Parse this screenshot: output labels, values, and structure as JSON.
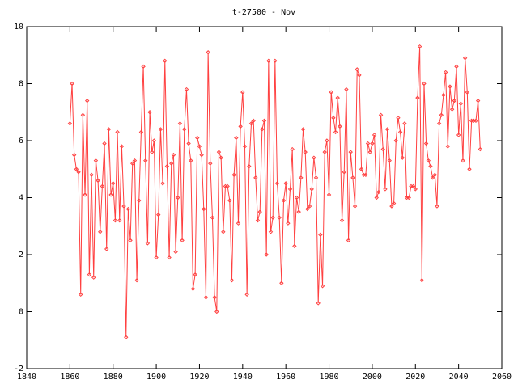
{
  "chart_data": {
    "type": "line",
    "title": "t-27500 - Nov",
    "x": [
      1860,
      1861,
      1862,
      1863,
      1864,
      1865,
      1866,
      1867,
      1868,
      1869,
      1870,
      1871,
      1872,
      1873,
      1874,
      1875,
      1876,
      1877,
      1878,
      1879,
      1880,
      1881,
      1882,
      1883,
      1884,
      1885,
      1886,
      1887,
      1888,
      1889,
      1890,
      1891,
      1892,
      1893,
      1894,
      1895,
      1896,
      1897,
      1898,
      1899,
      1900,
      1901,
      1902,
      1903,
      1904,
      1905,
      1906,
      1907,
      1908,
      1909,
      1910,
      1911,
      1912,
      1913,
      1914,
      1915,
      1916,
      1917,
      1918,
      1919,
      1920,
      1921,
      1922,
      1923,
      1924,
      1925,
      1926,
      1927,
      1928,
      1929,
      1930,
      1931,
      1932,
      1933,
      1934,
      1935,
      1936,
      1937,
      1938,
      1939,
      1940,
      1941,
      1942,
      1943,
      1944,
      1945,
      1946,
      1947,
      1948,
      1949,
      1950,
      1951,
      1952,
      1953,
      1954,
      1955,
      1956,
      1957,
      1958,
      1959,
      1960,
      1961,
      1962,
      1963,
      1964,
      1965,
      1966,
      1967,
      1968,
      1969,
      1970,
      1971,
      1972,
      1973,
      1974,
      1975,
      1976,
      1977,
      1978,
      1979,
      1980,
      1981,
      1982,
      1983,
      1984,
      1985,
      1986,
      1987,
      1988,
      1989,
      1990,
      1991,
      1992,
      1993,
      1994,
      1995,
      1996,
      1997,
      1998,
      1999,
      2000,
      2001,
      2002,
      2003,
      2004,
      2005,
      2006,
      2007,
      2008,
      2009,
      2010,
      2011,
      2012,
      2013,
      2014,
      2015,
      2016,
      2017,
      2018,
      2019,
      2020,
      2021,
      2022,
      2023,
      2024,
      2025,
      2026,
      2027,
      2028,
      2029,
      2030,
      2031,
      2032,
      2033,
      2034,
      2035,
      2036,
      2037,
      2038,
      2039,
      2040,
      2041,
      2042,
      2043,
      2044,
      2045,
      2046,
      2047,
      2048,
      2049,
      2050
    ],
    "series": [
      {
        "color": "#ff4040",
        "values": [
          6.6,
          8.0,
          5.5,
          5.0,
          4.9,
          0.6,
          6.9,
          4.1,
          7.4,
          1.3,
          4.8,
          1.2,
          5.3,
          4.6,
          2.8,
          4.4,
          5.9,
          2.2,
          6.4,
          4.1,
          4.5,
          3.2,
          6.3,
          3.2,
          5.8,
          3.7,
          -0.9,
          3.6,
          2.5,
          5.2,
          5.3,
          1.1,
          3.9,
          6.3,
          8.6,
          5.3,
          2.4,
          7.0,
          5.6,
          6.0,
          1.9,
          3.4,
          6.4,
          4.5,
          8.8,
          5.1,
          1.9,
          5.2,
          5.5,
          2.1,
          4.0,
          6.6,
          2.5,
          6.4,
          7.8,
          5.9,
          5.3,
          0.8,
          1.3,
          6.1,
          5.8,
          5.5,
          3.6,
          0.5,
          9.1,
          5.2,
          3.3,
          0.5,
          0.0,
          5.6,
          5.4,
          2.8,
          4.4,
          4.4,
          3.9,
          1.1,
          4.8,
          6.1,
          3.1,
          6.5,
          7.7,
          5.8,
          0.6,
          5.1,
          6.6,
          6.7,
          4.7,
          3.2,
          3.5,
          6.4,
          6.7,
          2.0,
          8.8,
          2.8,
          3.3,
          8.8,
          4.5,
          3.3,
          1.0,
          3.9,
          4.5,
          3.1,
          4.3,
          5.7,
          2.3,
          4.0,
          3.5,
          4.7,
          6.4,
          5.6,
          3.6,
          3.7,
          4.3,
          5.4,
          4.7,
          0.3,
          2.7,
          0.9,
          5.6,
          6.0,
          4.1,
          7.7,
          6.8,
          6.3,
          7.5,
          6.5,
          3.2,
          4.9,
          7.8,
          2.5,
          5.6,
          4.7,
          3.7,
          8.5,
          8.3,
          5.0,
          4.8,
          4.8,
          5.9,
          5.6,
          5.9,
          6.2,
          4.0,
          4.2,
          6.9,
          5.7,
          4.3,
          6.4,
          5.3,
          3.7,
          3.8,
          6.0,
          6.8,
          6.3,
          5.4,
          6.6,
          4.0,
          4.0,
          4.4,
          4.4,
          4.3,
          7.5,
          9.3,
          1.1,
          8.0,
          5.9,
          5.3,
          5.1,
          4.7,
          4.8,
          3.7,
          6.6,
          6.9,
          7.6,
          8.4,
          5.8,
          7.9,
          7.1,
          7.4,
          8.6,
          6.2,
          7.3,
          5.3,
          8.9,
          7.7,
          5.0,
          6.7,
          6.7,
          6.7,
          7.4,
          5.7
        ]
      }
    ],
    "xlim": [
      1840,
      2060
    ],
    "xticks": [
      1840,
      1860,
      1880,
      1900,
      1920,
      1940,
      1960,
      1980,
      2000,
      2020,
      2040,
      2060
    ],
    "ylim": [
      -2,
      10
    ],
    "yticks": [
      -2,
      0,
      2,
      4,
      6,
      8,
      10
    ]
  }
}
